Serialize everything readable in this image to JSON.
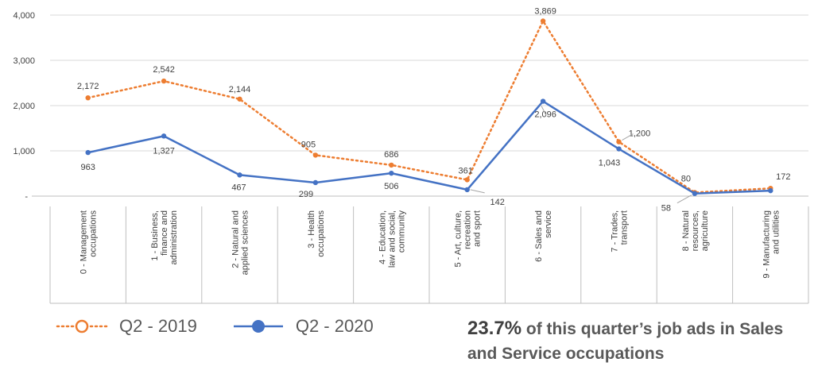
{
  "chart_data": {
    "type": "line",
    "categories": [
      [
        "0 - Management",
        "occupations"
      ],
      [
        "1 - Business,",
        "finance and",
        "administration"
      ],
      [
        "2 - Natural and",
        "applied sciences"
      ],
      [
        "3 - Health",
        "occupations"
      ],
      [
        "4 - Education,",
        "law and social,",
        "community"
      ],
      [
        "5 - Art, culture,",
        "recreation",
        "and sport"
      ],
      [
        "6 - Sales and",
        "service"
      ],
      [
        "7 - Trades,",
        "transport"
      ],
      [
        "8 - Natural",
        "resources,",
        "agriculture"
      ],
      [
        "9 - Manufacturing",
        "and utilities"
      ]
    ],
    "series": [
      {
        "name": "Q2 - 2019",
        "color": "#ED7D31",
        "style": "dotted",
        "values": [
          2172,
          2542,
          2144,
          905,
          686,
          361,
          3869,
          1200,
          80,
          172
        ],
        "labels": [
          "2,172",
          "2,542",
          "2,144",
          "905",
          "686",
          "361",
          "3,869",
          "1,200",
          "80",
          "172"
        ]
      },
      {
        "name": "Q2 - 2020",
        "color": "#4472C4",
        "style": "solid",
        "values": [
          963,
          1327,
          467,
          299,
          506,
          142,
          2096,
          1043,
          58,
          120
        ],
        "labels": [
          "963",
          "1,327",
          "467",
          "299",
          "506",
          "142",
          "2,096",
          "1,043",
          "58",
          ""
        ]
      }
    ],
    "yticks": [
      {
        "value": 0,
        "label": "-"
      },
      {
        "value": 1000,
        "label": "1,000"
      },
      {
        "value": 2000,
        "label": "2,000"
      },
      {
        "value": 3000,
        "label": "3,000"
      },
      {
        "value": 4000,
        "label": "4,000"
      }
    ],
    "ylim": [
      0,
      4000
    ],
    "grid": true,
    "legend_position": "bottom-left"
  },
  "legend": {
    "items": [
      {
        "label": "Q2 - 2019",
        "color": "#ED7D31"
      },
      {
        "label": "Q2 - 2020",
        "color": "#4472C4"
      }
    ]
  },
  "callout": {
    "percent": "23.7%",
    "text": " of this quarter’s job ads in Sales and Service occupations"
  }
}
